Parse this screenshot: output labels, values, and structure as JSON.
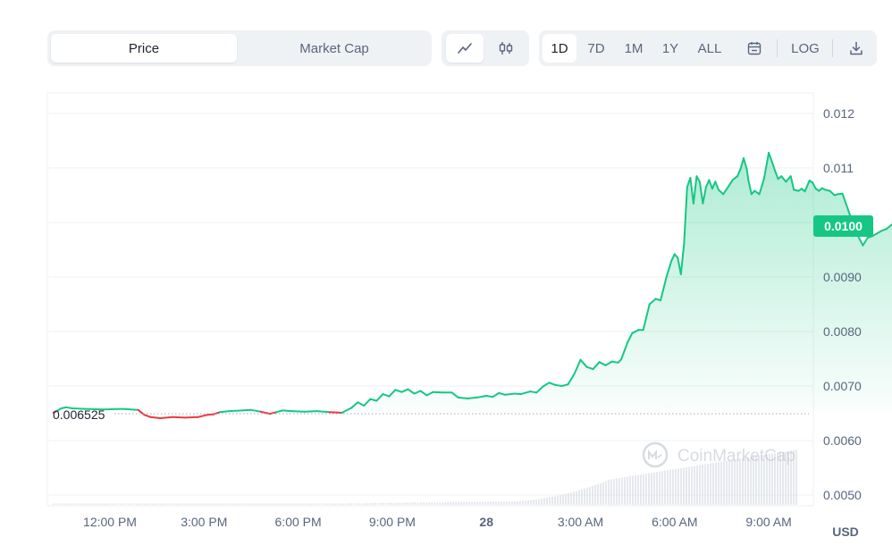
{
  "toggles": {
    "metric": [
      "Price",
      "Market Cap"
    ],
    "active_metric": "Price",
    "style_icons": [
      "line-chart-icon",
      "candlestick-icon"
    ],
    "ranges": [
      "1D",
      "7D",
      "1M",
      "1Y",
      "ALL"
    ],
    "active_range": "1D",
    "calendar_icon": "calendar-icon",
    "log_label": "LOG",
    "download_icon": "download-icon"
  },
  "colors": {
    "up": "#16c784",
    "down": "#ea3943"
  },
  "chart_data": {
    "type": "area",
    "currency": "USD",
    "ylim": [
      0.0049,
      0.0123
    ],
    "y_ticks": [
      "0.012",
      "0.011",
      "0.0100",
      "0.0090",
      "0.0080",
      "0.0070",
      "0.0060",
      "0.0050"
    ],
    "x_ticks": [
      "12:00 PM",
      "3:00 PM",
      "6:00 PM",
      "9:00 PM",
      "28",
      "3:00 AM",
      "6:00 AM",
      "9:00 AM"
    ],
    "xlim_hours": [
      10.2,
      34.8
    ],
    "reference_price": "0.006525",
    "current_price": "0.0100",
    "watermark": "CoinMarketCap",
    "price": [
      [
        10.2,
        0.00651
      ],
      [
        10.3,
        0.00654
      ],
      [
        10.45,
        0.00659
      ],
      [
        10.6,
        0.00661
      ],
      [
        10.8,
        0.00659
      ],
      [
        11.2,
        0.00658
      ],
      [
        11.8,
        0.00657
      ],
      [
        12.4,
        0.00658
      ],
      [
        12.9,
        0.00656
      ],
      [
        13.1,
        0.00647
      ],
      [
        13.3,
        0.00643
      ],
      [
        13.6,
        0.00641
      ],
      [
        14.0,
        0.00643
      ],
      [
        14.4,
        0.00642
      ],
      [
        14.8,
        0.00643
      ],
      [
        15.1,
        0.00647
      ],
      [
        15.3,
        0.00648
      ],
      [
        15.5,
        0.00652
      ],
      [
        15.8,
        0.00654
      ],
      [
        16.2,
        0.00655
      ],
      [
        16.5,
        0.00656
      ],
      [
        16.8,
        0.00653
      ],
      [
        17.1,
        0.00649
      ],
      [
        17.3,
        0.00652
      ],
      [
        17.5,
        0.00655
      ],
      [
        17.8,
        0.00654
      ],
      [
        18.2,
        0.00653
      ],
      [
        18.6,
        0.00654
      ],
      [
        19.0,
        0.00652
      ],
      [
        19.4,
        0.00651
      ],
      [
        19.7,
        0.0066
      ],
      [
        19.9,
        0.0067
      ],
      [
        20.1,
        0.00664
      ],
      [
        20.3,
        0.00676
      ],
      [
        20.5,
        0.00673
      ],
      [
        20.7,
        0.00685
      ],
      [
        20.9,
        0.00681
      ],
      [
        21.1,
        0.00693
      ],
      [
        21.3,
        0.00689
      ],
      [
        21.5,
        0.00694
      ],
      [
        21.7,
        0.00686
      ],
      [
        21.9,
        0.00691
      ],
      [
        22.1,
        0.00683
      ],
      [
        22.3,
        0.00689
      ],
      [
        22.6,
        0.00688
      ],
      [
        22.9,
        0.00688
      ],
      [
        23.1,
        0.00679
      ],
      [
        23.4,
        0.00677
      ],
      [
        23.7,
        0.00679
      ],
      [
        24.0,
        0.00682
      ],
      [
        24.2,
        0.0068
      ],
      [
        24.4,
        0.00687
      ],
      [
        24.6,
        0.00684
      ],
      [
        24.9,
        0.00686
      ],
      [
        25.1,
        0.00685
      ],
      [
        25.4,
        0.0069
      ],
      [
        25.6,
        0.00688
      ],
      [
        25.8,
        0.00699
      ],
      [
        26.0,
        0.00706
      ],
      [
        26.2,
        0.00702
      ],
      [
        26.4,
        0.007
      ],
      [
        26.6,
        0.00703
      ],
      [
        26.8,
        0.00722
      ],
      [
        27.0,
        0.00748
      ],
      [
        27.2,
        0.00735
      ],
      [
        27.4,
        0.00731
      ],
      [
        27.6,
        0.00744
      ],
      [
        27.8,
        0.00738
      ],
      [
        28.0,
        0.00745
      ],
      [
        28.2,
        0.00743
      ],
      [
        28.3,
        0.00749
      ],
      [
        28.5,
        0.0078
      ],
      [
        28.65,
        0.00797
      ],
      [
        28.85,
        0.00803
      ],
      [
        29.0,
        0.00803
      ],
      [
        29.2,
        0.0085
      ],
      [
        29.4,
        0.0086
      ],
      [
        29.55,
        0.00857
      ],
      [
        29.75,
        0.00902
      ],
      [
        29.9,
        0.0093
      ],
      [
        30.0,
        0.00942
      ],
      [
        30.1,
        0.00935
      ],
      [
        30.2,
        0.00905
      ],
      [
        30.3,
        0.0096
      ],
      [
        30.4,
        0.01065
      ],
      [
        30.5,
        0.01082
      ],
      [
        30.6,
        0.01035
      ],
      [
        30.7,
        0.01085
      ],
      [
        30.8,
        0.01075
      ],
      [
        30.9,
        0.01035
      ],
      [
        31.0,
        0.01065
      ],
      [
        31.1,
        0.01078
      ],
      [
        31.2,
        0.01062
      ],
      [
        31.3,
        0.01075
      ],
      [
        31.4,
        0.0106
      ],
      [
        31.55,
        0.01052
      ],
      [
        31.7,
        0.01065
      ],
      [
        31.85,
        0.01078
      ],
      [
        32.0,
        0.01085
      ],
      [
        32.1,
        0.01098
      ],
      [
        32.2,
        0.01118
      ],
      [
        32.3,
        0.01098
      ],
      [
        32.35,
        0.01078
      ],
      [
        32.45,
        0.01052
      ],
      [
        32.55,
        0.01058
      ],
      [
        32.7,
        0.01052
      ],
      [
        32.85,
        0.0108
      ],
      [
        33.0,
        0.01128
      ],
      [
        33.1,
        0.01112
      ],
      [
        33.2,
        0.01095
      ],
      [
        33.3,
        0.0108
      ],
      [
        33.4,
        0.01085
      ],
      [
        33.55,
        0.01075
      ],
      [
        33.7,
        0.01085
      ],
      [
        33.8,
        0.0106
      ],
      [
        33.95,
        0.01058
      ],
      [
        34.05,
        0.01062
      ],
      [
        34.15,
        0.01057
      ],
      [
        34.3,
        0.01077
      ],
      [
        34.4,
        0.01073
      ],
      [
        34.5,
        0.01062
      ],
      [
        34.6,
        0.01058
      ],
      [
        34.7,
        0.01063
      ],
      [
        34.8,
        0.0106
      ],
      [
        34.95,
        0.01058
      ],
      [
        35.1,
        0.0105
      ],
      [
        35.2,
        0.01052
      ],
      [
        35.35,
        0.01053
      ],
      [
        35.55,
        0.0102
      ],
      [
        35.7,
        0.00995
      ],
      [
        35.85,
        0.00975
      ],
      [
        36.0,
        0.00958
      ],
      [
        36.15,
        0.00972
      ],
      [
        36.3,
        0.00975
      ],
      [
        36.45,
        0.0098
      ],
      [
        36.6,
        0.00985
      ],
      [
        36.75,
        0.00988
      ],
      [
        36.9,
        0.00995
      ],
      [
        37.05,
        0.01
      ]
    ]
  }
}
